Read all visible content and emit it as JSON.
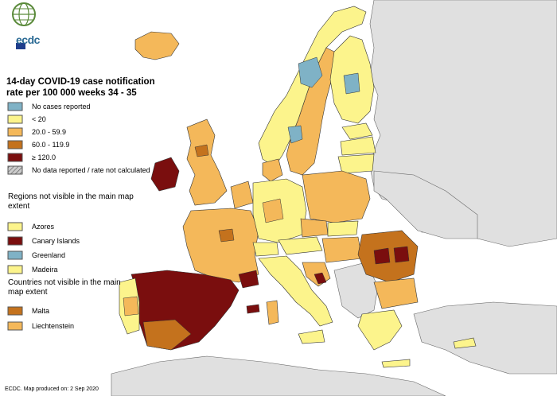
{
  "map": {
    "title": "14-day COVID-19 case notification rate per 100 000 weeks 34 - 35",
    "legend": [
      {
        "label": "No cases reported",
        "color": "#7fb2c6"
      },
      {
        "label": "< 20",
        "color": "#fcf48c"
      },
      {
        "label": "20.0 - 59.9",
        "color": "#f4b85a"
      },
      {
        "label": "60.0 - 119.9",
        "color": "#c4721d"
      },
      {
        "label": "≥ 120.0",
        "color": "#7a0e0e"
      },
      {
        "label": "No data reported / rate not calculated",
        "color": "#aaaaaa"
      }
    ],
    "regions_title": "Regions not visible in the main map extent",
    "regions": [
      {
        "label": "Azores",
        "color": "#fcf48c"
      },
      {
        "label": "Canary Islands",
        "color": "#7a0e0e"
      },
      {
        "label": "Greenland",
        "color": "#7fb2c6"
      },
      {
        "label": "Madeira",
        "color": "#fcf48c"
      }
    ],
    "countries_title": "Countries not visible in the main map extent",
    "countries": [
      {
        "label": "Malta",
        "color": "#c4721d"
      },
      {
        "label": "Liechtenstein",
        "color": "#f4b85a"
      }
    ],
    "footer": "ECDC. Map produced on: 2 Sep 2020",
    "logo_text": "ecdc",
    "logo_icon": "globe-icon",
    "colors": {
      "background_country": "#e0e0e0",
      "sea": "#ffffff",
      "border": "#333333"
    }
  }
}
